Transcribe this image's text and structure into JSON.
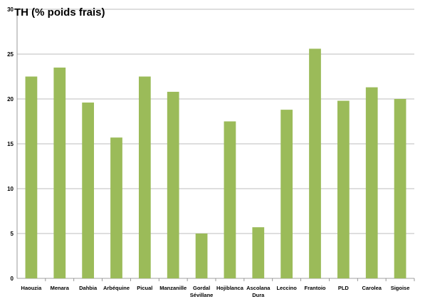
{
  "chart_data": {
    "type": "bar",
    "title": "TH (% poids frais)",
    "xlabel": "",
    "ylabel": "",
    "ylim": [
      0,
      30
    ],
    "yticks": [
      0,
      5,
      10,
      15,
      20,
      25,
      30
    ],
    "grid": true,
    "legend": "none",
    "bar_color": "#9bbb59",
    "categories": [
      "Haouzia",
      "Menara",
      "Dahbia",
      "Arbéquine",
      "Picual",
      "Manzanille",
      "Gordal Sévillane",
      "Hojiblanca",
      "Ascolana Dura",
      "Leccino",
      "Frantoio",
      "PLD",
      "Carolea",
      "Sigoise"
    ],
    "values": [
      22.5,
      23.5,
      19.6,
      15.7,
      22.5,
      20.8,
      5.0,
      17.5,
      5.7,
      18.8,
      25.6,
      19.8,
      21.3,
      20.0
    ]
  }
}
